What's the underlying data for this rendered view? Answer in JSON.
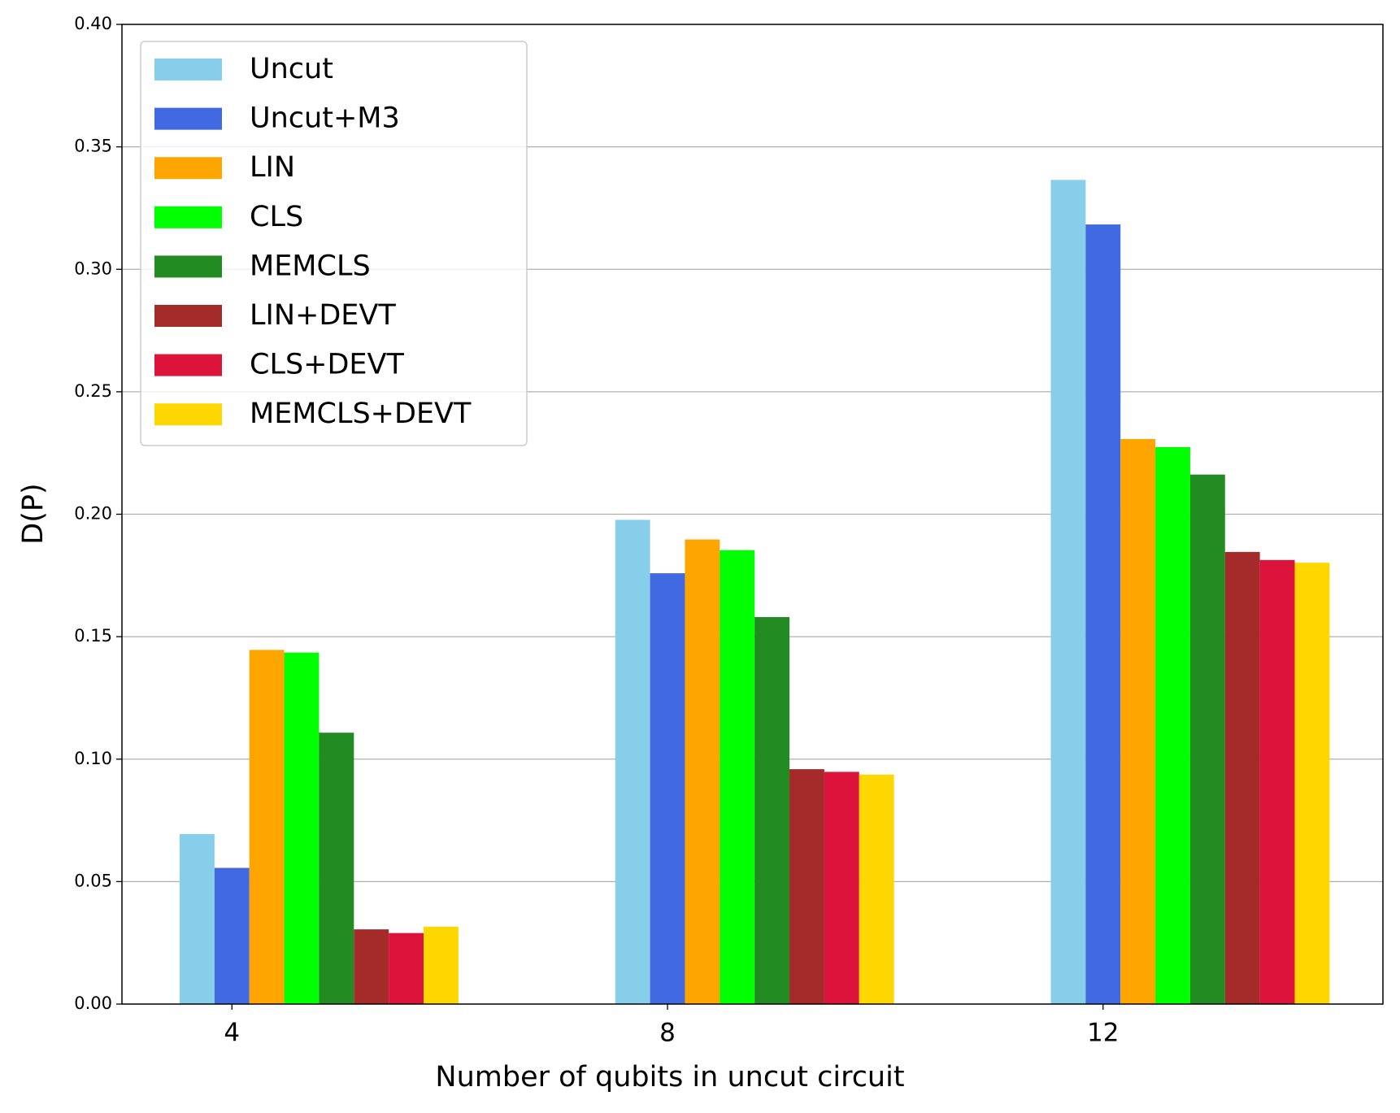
{
  "chart_data": {
    "type": "bar",
    "x_label": "Number of qubits in uncut circuit",
    "y_label": "D(P)",
    "x": [
      4,
      8,
      12
    ],
    "series": [
      {
        "name": "Uncut",
        "color": "#87ceeb",
        "values": [
          0.0694,
          0.1977,
          0.3365
        ]
      },
      {
        "name": "Uncut+M3",
        "color": "#4169e1",
        "values": [
          0.0556,
          0.1759,
          0.3183
        ]
      },
      {
        "name": "LIN",
        "color": "#ffa500",
        "values": [
          0.1446,
          0.1897,
          0.2307
        ]
      },
      {
        "name": "CLS",
        "color": "#00ff00",
        "values": [
          0.1435,
          0.1853,
          0.2274
        ]
      },
      {
        "name": "MEMCLS",
        "color": "#228b22",
        "values": [
          0.1108,
          0.158,
          0.2162
        ]
      },
      {
        "name": "LIN+DEVT",
        "color": "#a52a2a",
        "values": [
          0.0305,
          0.0959,
          0.1846
        ]
      },
      {
        "name": "CLS+DEVT",
        "color": "#dc143c",
        "values": [
          0.029,
          0.0948,
          0.1813
        ]
      },
      {
        "name": "MEMCLS+DEVT",
        "color": "#ffd700",
        "values": [
          0.0316,
          0.0937,
          0.1802
        ]
      }
    ],
    "xlim": [
      2.99,
      14.57
    ],
    "xticks": [
      4,
      8,
      12
    ],
    "ylim": [
      0,
      0.4
    ],
    "yticks": [
      {
        "value": 0,
        "label": "0.00"
      },
      {
        "value": 0.05,
        "label": "0.05"
      },
      {
        "value": 0.1,
        "label": "0.10"
      },
      {
        "value": 0.15,
        "label": "0.15"
      },
      {
        "value": 0.2,
        "label": "0.20"
      },
      {
        "value": 0.25,
        "label": "0.25"
      },
      {
        "value": 0.3,
        "label": "0.30"
      },
      {
        "value": 0.35,
        "label": "0.35"
      },
      {
        "value": 0.4,
        "label": "0.40"
      }
    ],
    "grid": "y",
    "legend": "upper-left"
  }
}
